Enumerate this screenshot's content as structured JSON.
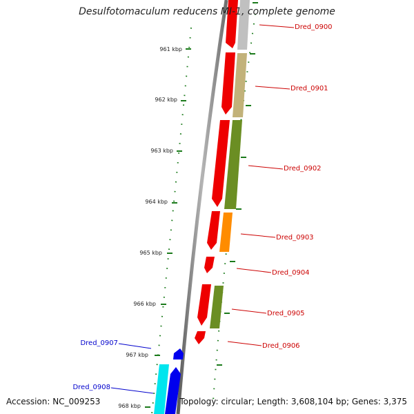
{
  "title": "Desulfotomaculum reducens MI-1, complete genome",
  "accession": "Accession: NC_009253",
  "topology": "Topology: circular; Length: 3,608,104 bp; Genes: 3,375",
  "colors": {
    "forward_label": "#cc0000",
    "reverse_label": "#0000cc",
    "tick": "#1a7a1a",
    "backbone": "#8c8c8c"
  },
  "ticks": [
    {
      "label": "961 kbp"
    },
    {
      "label": "962 kbp"
    },
    {
      "label": "963 kbp"
    },
    {
      "label": "964 kbp"
    },
    {
      "label": "965 kbp"
    },
    {
      "label": "966 kbp"
    },
    {
      "label": "967 kbp"
    },
    {
      "label": "968 kbp"
    }
  ],
  "genes": [
    {
      "label": "Dred_0900",
      "strand": "forward",
      "arrow_color": "#ee0000",
      "cog_color": "#c0c0c0"
    },
    {
      "label": "Dred_0901",
      "strand": "forward",
      "arrow_color": "#ee0000",
      "cog_color": "#c2b27a"
    },
    {
      "label": "Dred_0902",
      "strand": "forward",
      "arrow_color": "#ee0000",
      "cog_color": "#6b8e23"
    },
    {
      "label": "Dred_0903",
      "strand": "forward",
      "arrow_color": "#ee0000",
      "cog_color": "#ff8c00"
    },
    {
      "label": "Dred_0904",
      "strand": "forward",
      "arrow_color": "#ee0000",
      "cog_color": null
    },
    {
      "label": "Dred_0905",
      "strand": "forward",
      "arrow_color": "#ee0000",
      "cog_color": "#6b8e23"
    },
    {
      "label": "Dred_0906",
      "strand": "forward",
      "arrow_color": "#ee0000",
      "cog_color": null
    },
    {
      "label": "Dred_0907",
      "strand": "reverse",
      "arrow_color": "#0000ee",
      "cog_color": null
    },
    {
      "label": "Dred_0908",
      "strand": "reverse",
      "arrow_color": "#0000ee",
      "cog_color": "#00e5ee"
    }
  ]
}
